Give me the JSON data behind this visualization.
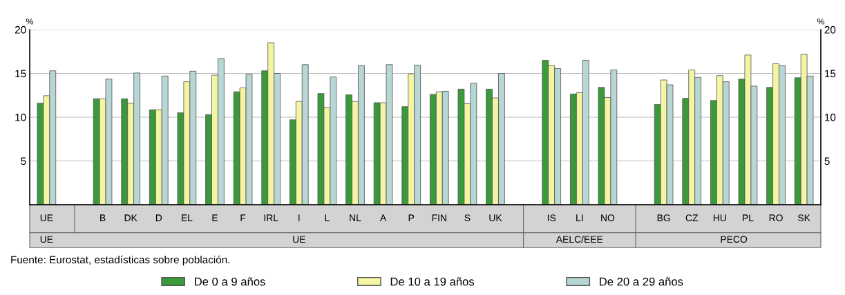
{
  "chart_data": {
    "type": "bar",
    "categories": [
      "UE",
      null,
      "B",
      "DK",
      "D",
      "EL",
      "E",
      "F",
      "IRL",
      "I",
      "L",
      "NL",
      "A",
      "P",
      "FIN",
      "S",
      "UK",
      null,
      "IS",
      "LI",
      "NO",
      null,
      "BG",
      "CZ",
      "HU",
      "PL",
      "RO",
      "SK"
    ],
    "series": [
      {
        "name": "De 0 a 9 años",
        "color": "#3a9a3a",
        "values": [
          11.6,
          null,
          12.1,
          12.1,
          10.85,
          10.5,
          10.3,
          12.9,
          15.3,
          9.7,
          12.7,
          12.55,
          11.65,
          11.2,
          12.6,
          13.2,
          13.2,
          null,
          16.5,
          12.65,
          13.4,
          null,
          11.45,
          12.15,
          11.9,
          14.35,
          13.4,
          14.5
        ]
      },
      {
        "name": "De 10 a 19 años",
        "color": "#f4f5a2",
        "values": [
          12.45,
          null,
          12.1,
          11.6,
          10.85,
          14.05,
          14.8,
          13.35,
          18.5,
          11.8,
          11.1,
          11.8,
          11.65,
          14.95,
          12.9,
          11.55,
          12.2,
          null,
          15.9,
          12.8,
          12.25,
          null,
          14.25,
          15.4,
          14.75,
          17.1,
          16.1,
          17.2
        ]
      },
      {
        "name": "De 20 a 29 años",
        "color": "#b7d6d4",
        "values": [
          15.3,
          null,
          14.35,
          15.05,
          14.7,
          15.25,
          16.7,
          14.9,
          15.0,
          16.0,
          14.6,
          15.9,
          16.0,
          15.95,
          12.95,
          13.9,
          15.0,
          null,
          15.55,
          16.5,
          15.4,
          null,
          13.7,
          14.55,
          14.05,
          13.55,
          15.9,
          14.7
        ]
      }
    ],
    "ylabel": "%",
    "y2label": "%",
    "ylim": [
      0,
      20
    ],
    "yticks": [
      5,
      10,
      15,
      20
    ],
    "y2lim": [
      0,
      20
    ],
    "y2ticks": [
      5,
      10,
      15,
      20
    ],
    "grid": "y",
    "legend": "bottom",
    "annotations": [
      "UE",
      "UE",
      "AELC/EEE",
      "PECO",
      "Fuente: Eurostat, estadísticas sobre población."
    ]
  }
}
